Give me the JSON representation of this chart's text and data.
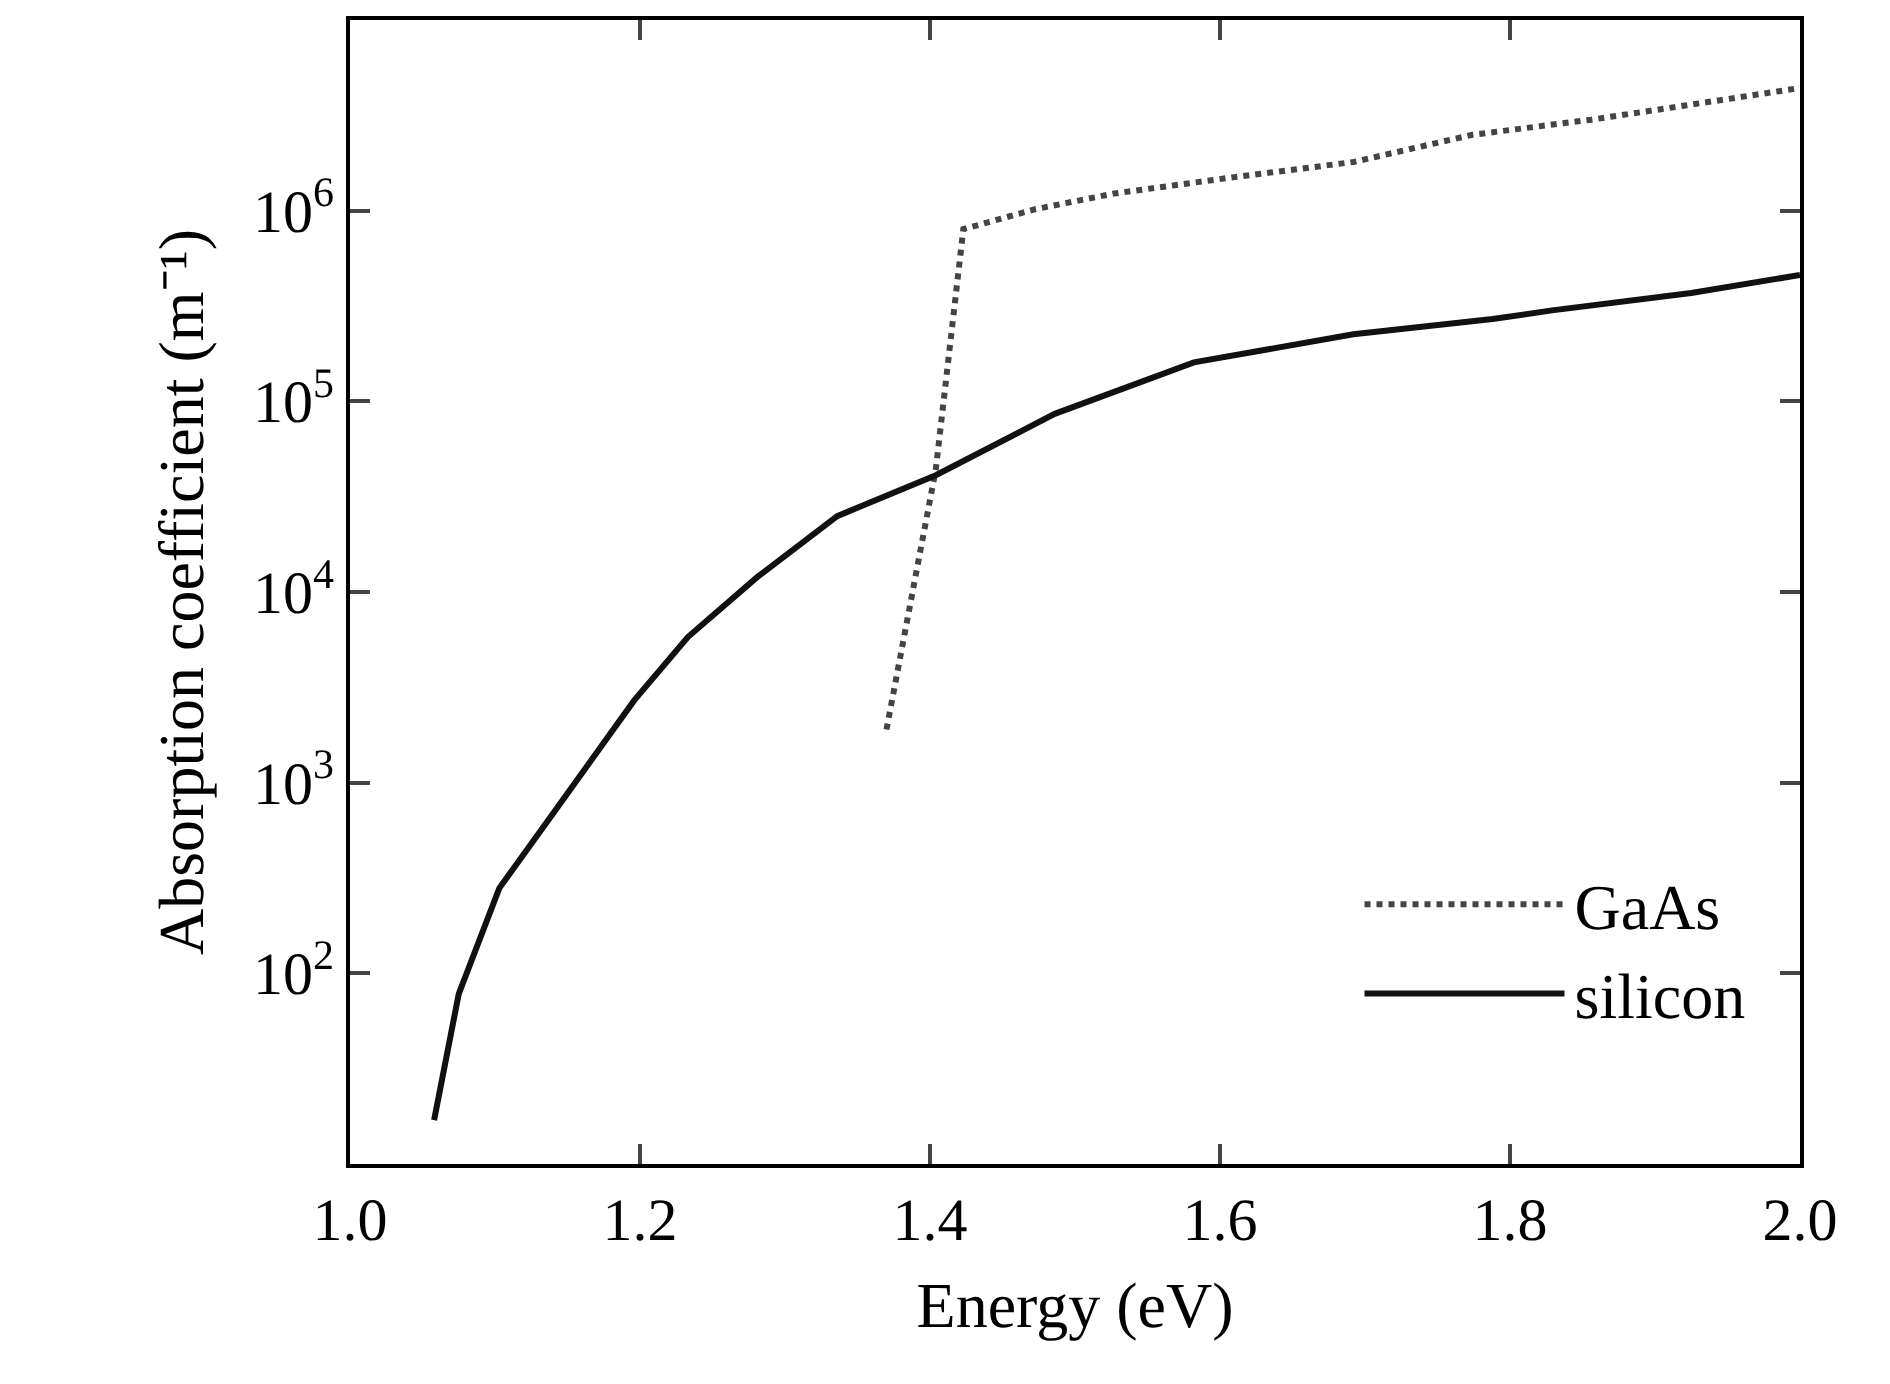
{
  "chart_data": {
    "type": "line",
    "xlabel": "Energy (eV)",
    "ylabel": "Absorption coefficient (m⁻¹)",
    "log": "y",
    "legend": "bottom right",
    "marker": "none",
    "xlim": [
      1.0,
      2.0
    ],
    "xticks": [
      {
        "value": 1.0,
        "label": "1.0"
      },
      {
        "value": 1.2,
        "label": "1.2"
      },
      {
        "value": 1.4,
        "label": "1.4"
      },
      {
        "value": 1.6,
        "label": "1.6"
      },
      {
        "value": 1.8,
        "label": "1.8"
      },
      {
        "value": 2.0,
        "label": "2.0"
      }
    ],
    "ylim": [
      10,
      10000000
    ],
    "yticks": [
      {
        "value": 100,
        "label": "10$^{2}$"
      },
      {
        "value": 1000,
        "label": "10$^{3}$"
      },
      {
        "value": 10000,
        "label": "10$^{4}$"
      },
      {
        "value": 100000,
        "label": "10$^{5}$"
      },
      {
        "value": 1000000,
        "label": "10$^{6}$"
      }
    ],
    "series": [
      {
        "name": "GaAs",
        "color": "#444444",
        "line_style": "dotted",
        "x": [
          1.37,
          1.404,
          1.423,
          1.473,
          1.527,
          1.61,
          1.692,
          1.774,
          1.856,
          1.925,
          2.0
        ],
        "values": [
          1900,
          44000,
          800000,
          1020000,
          1230000,
          1500000,
          1800000,
          2500000,
          3000000,
          3600000,
          4400000
        ]
      },
      {
        "name": "silicon",
        "color": "#111111",
        "line_style": "solid",
        "x": [
          1.058,
          1.075,
          1.103,
          1.144,
          1.196,
          1.233,
          1.281,
          1.336,
          1.404,
          1.486,
          1.582,
          1.692,
          1.788,
          1.829,
          1.925,
          2.0
        ],
        "values": [
          17,
          78,
          280,
          760,
          2700,
          5800,
          12000,
          25000,
          41000,
          86000,
          160000,
          225000,
          270000,
          300000,
          370000,
          460000
        ]
      }
    ]
  }
}
